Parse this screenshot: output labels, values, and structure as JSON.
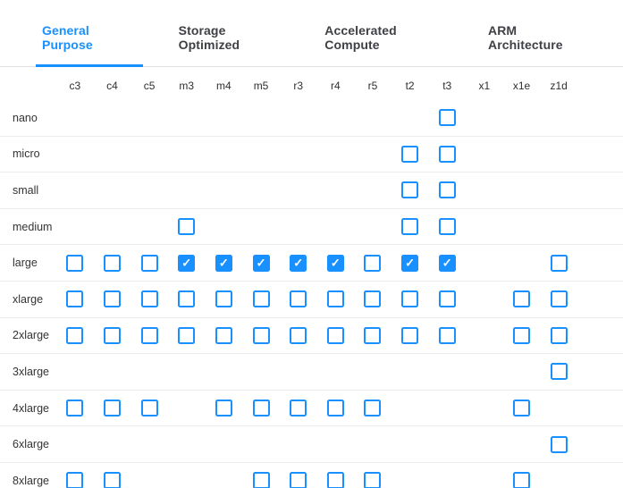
{
  "colors": {
    "accent": "#1890ff",
    "divider": "#ececec",
    "tab_border": "#e1e1e1",
    "text": "#2f2f2f",
    "tab_inactive_text": "#3f4045",
    "checked_fill": "#1890ff",
    "checkmark_color": "#ffffff"
  },
  "icons": {
    "checkmark": "✓"
  },
  "tabs": [
    {
      "label": "General Purpose",
      "active": true
    },
    {
      "label": "Storage Optimized",
      "active": false
    },
    {
      "label": "Accelerated Compute",
      "active": false
    },
    {
      "label": "ARM Architecture",
      "active": false
    }
  ],
  "grid": {
    "columns": [
      "c3",
      "c4",
      "c5",
      "m3",
      "m4",
      "m5",
      "r3",
      "r4",
      "r5",
      "t2",
      "t3",
      "x1",
      "x1e",
      "z1d"
    ],
    "rows": [
      {
        "label": "nano",
        "cells": {
          "t3": false
        }
      },
      {
        "label": "micro",
        "cells": {
          "t2": false,
          "t3": false
        }
      },
      {
        "label": "small",
        "cells": {
          "t2": false,
          "t3": false
        }
      },
      {
        "label": "medium",
        "cells": {
          "m3": false,
          "t2": false,
          "t3": false
        }
      },
      {
        "label": "large",
        "cells": {
          "c3": false,
          "c4": false,
          "c5": false,
          "m3": true,
          "m4": true,
          "m5": true,
          "r3": true,
          "r4": true,
          "r5": false,
          "t2": true,
          "t3": true,
          "z1d": false
        }
      },
      {
        "label": "xlarge",
        "cells": {
          "c3": false,
          "c4": false,
          "c5": false,
          "m3": false,
          "m4": false,
          "m5": false,
          "r3": false,
          "r4": false,
          "r5": false,
          "t2": false,
          "t3": false,
          "x1e": false,
          "z1d": false
        }
      },
      {
        "label": "2xlarge",
        "cells": {
          "c3": false,
          "c4": false,
          "c5": false,
          "m3": false,
          "m4": false,
          "m5": false,
          "r3": false,
          "r4": false,
          "r5": false,
          "t2": false,
          "t3": false,
          "x1e": false,
          "z1d": false
        }
      },
      {
        "label": "3xlarge",
        "cells": {
          "z1d": false
        }
      },
      {
        "label": "4xlarge",
        "cells": {
          "c3": false,
          "c4": false,
          "c5": false,
          "m4": false,
          "m5": false,
          "r3": false,
          "r4": false,
          "r5": false,
          "x1e": false
        }
      },
      {
        "label": "6xlarge",
        "cells": {
          "z1d": false
        }
      },
      {
        "label": "8xlarge",
        "cells": {
          "c3": false,
          "c4": false,
          "m5": false,
          "r3": false,
          "r4": false,
          "r5": false,
          "x1e": false
        }
      }
    ]
  }
}
